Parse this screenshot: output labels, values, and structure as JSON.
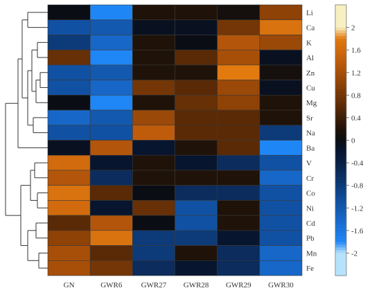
{
  "chart_data": {
    "type": "heatmap",
    "columns": [
      "GN",
      "GWR6",
      "GWR27",
      "GWR28",
      "GWR29",
      "GWR30"
    ],
    "rows": [
      "Li",
      "Ca",
      "K",
      "Al",
      "Zn",
      "Cu",
      "Mg",
      "Sr",
      "Na",
      "Ba",
      "V",
      "Cr",
      "Co",
      "Ni",
      "Cd",
      "Pb",
      "Mn",
      "Fe"
    ],
    "values": [
      [
        0.0,
        -1.8,
        0.2,
        0.2,
        0.1,
        1.0
      ],
      [
        -1.1,
        -1.2,
        -0.1,
        -0.1,
        0.8,
        1.7
      ],
      [
        -0.8,
        -1.4,
        0.2,
        0.0,
        1.3,
        1.1
      ],
      [
        0.7,
        -1.8,
        0.2,
        0.6,
        1.2,
        -0.1
      ],
      [
        -1.1,
        -1.2,
        0.2,
        0.2,
        1.8,
        0.1
      ],
      [
        -1.1,
        -1.4,
        0.8,
        0.6,
        1.1,
        -0.1
      ],
      [
        0.0,
        -1.8,
        0.2,
        0.7,
        1.0,
        0.2
      ],
      [
        -1.4,
        -1.2,
        1.1,
        0.6,
        0.6,
        0.2
      ],
      [
        -1.1,
        -1.1,
        1.4,
        0.6,
        0.6,
        -0.8
      ],
      [
        -0.1,
        1.3,
        -0.2,
        0.2,
        0.6,
        -1.8
      ],
      [
        1.6,
        -0.2,
        0.2,
        -0.2,
        -0.6,
        -1.1
      ],
      [
        1.3,
        -0.6,
        0.2,
        0.2,
        0.2,
        -1.4
      ],
      [
        1.7,
        0.6,
        0.0,
        -0.6,
        -0.6,
        -1.1
      ],
      [
        1.6,
        -0.2,
        0.7,
        -1.1,
        0.2,
        -1.1
      ],
      [
        0.6,
        1.3,
        0.0,
        -1.1,
        0.2,
        -1.1
      ],
      [
        1.0,
        1.7,
        -0.8,
        -0.8,
        -0.2,
        -1.1
      ],
      [
        1.2,
        0.6,
        -0.8,
        0.2,
        -0.6,
        -1.4
      ],
      [
        1.2,
        0.8,
        -0.6,
        -0.2,
        -0.6,
        -1.4
      ]
    ],
    "legend_ticks": [
      "2",
      "1.6",
      "1.2",
      "0.8",
      "0.4",
      "0",
      "-0.4",
      "-0.8",
      "-1.2",
      "-1.6",
      "-2"
    ],
    "colorscale": {
      "stops": [
        {
          "v": -2.4,
          "color": "#b6e3fb"
        },
        {
          "v": -2.0,
          "color": "#b6e3fb"
        },
        {
          "v": -1.8,
          "color": "#1f87f5"
        },
        {
          "v": -1.4,
          "color": "#1767c8"
        },
        {
          "v": -1.0,
          "color": "#0f4a96"
        },
        {
          "v": -0.6,
          "color": "#0b2c5c"
        },
        {
          "v": -0.2,
          "color": "#07152e"
        },
        {
          "v": 0.0,
          "color": "#0a0d14"
        },
        {
          "v": 0.2,
          "color": "#1f1208"
        },
        {
          "v": 0.6,
          "color": "#5a2a06"
        },
        {
          "v": 1.0,
          "color": "#8e4206"
        },
        {
          "v": 1.4,
          "color": "#bf5c0c"
        },
        {
          "v": 1.8,
          "color": "#e27a10"
        },
        {
          "v": 2.0,
          "color": "#f7f0c0"
        },
        {
          "v": 2.4,
          "color": "#f7f0c0"
        }
      ]
    },
    "dendrogram": "rows-left"
  }
}
